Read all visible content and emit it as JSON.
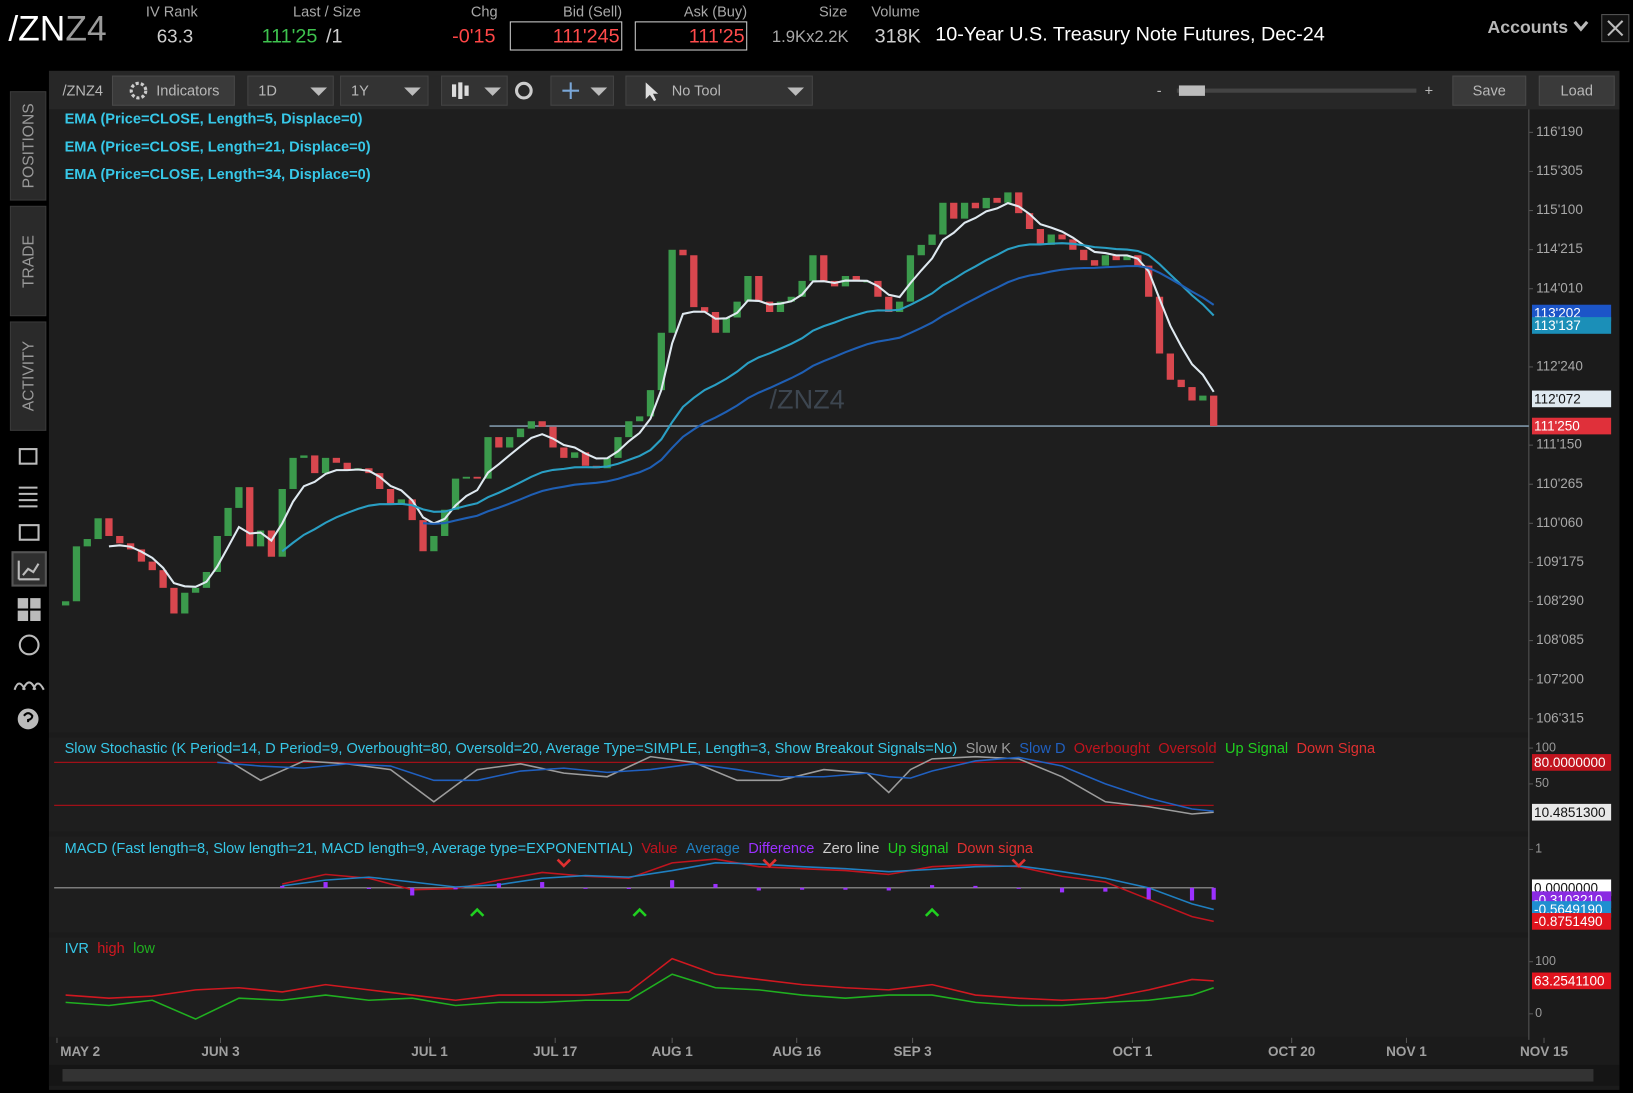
{
  "header": {
    "symbol_main": "/ZN",
    "symbol_suffix": "Z4",
    "fields": [
      {
        "label": "IV Rank",
        "value": "63.3"
      },
      {
        "label": "Last / Size",
        "value": "111'25",
        "extra": "/1"
      },
      {
        "label": "Chg",
        "value": "-0'15"
      },
      {
        "label": "Bid (Sell)",
        "value": "111'245"
      },
      {
        "label": "Ask (Buy)",
        "value": "111'25"
      },
      {
        "label": "Size",
        "value": "1.9Kx2.2K"
      },
      {
        "label": "Volume",
        "value": "318K"
      }
    ],
    "description": "10-Year U.S. Treasury Note Futures, Dec-24",
    "accounts": "Accounts"
  },
  "toolbar": {
    "symbol": "/ZNZ4",
    "indicators": "Indicators",
    "aggregation": "1D",
    "range": "1Y",
    "tool": "No Tool",
    "zoom_out": "-",
    "zoom_in": "+",
    "save": "Save",
    "load": "Load"
  },
  "sidebar": {
    "tabs": [
      "POSITIONS",
      "TRADE",
      "ACTIVITY"
    ]
  },
  "chart_data": [
    {
      "type": "candlestick",
      "watermark": "/ZNZ4",
      "up_color": "#3b9a4c",
      "down_color": "#d8474e",
      "values": [
        108.91,
        109.81,
        109.93,
        110.27,
        109.98,
        109.86,
        109.76,
        109.56,
        109.42,
        109.13,
        108.71,
        109.05,
        109.13,
        109.39,
        109.98,
        110.44,
        110.78,
        109.81,
        110.07,
        109.64,
        110.75,
        111.26,
        111.3,
        111.01,
        111.26,
        111.18,
        111.06,
        111.09,
        111.01,
        110.75,
        110.5,
        110.58,
        110.24,
        109.73,
        109.98,
        110.41,
        110.92,
        110.95,
        110.92,
        111.6,
        111.43,
        111.6,
        111.74,
        111.86,
        111.77,
        111.43,
        111.26,
        111.35,
        111.13,
        111.09,
        111.26,
        111.6,
        111.86,
        111.94,
        112.37,
        113.31,
        114.67,
        114.58,
        113.73,
        113.65,
        113.31,
        113.56,
        113.82,
        114.24,
        113.82,
        113.65,
        113.82,
        113.9,
        114.16,
        114.58,
        114.16,
        114.07,
        114.24,
        114.16,
        114.16,
        113.9,
        113.65,
        113.82,
        114.58,
        114.75,
        114.92,
        115.44,
        115.18,
        115.44,
        115.35,
        115.52,
        115.44,
        115.61,
        115.27,
        115.01,
        114.75,
        114.92,
        114.84,
        114.67,
        114.5,
        114.41,
        114.58,
        114.5,
        114.58,
        114.41,
        113.9,
        112.97,
        112.54,
        112.42,
        112.2,
        112.28,
        111.78125
      ],
      "ylim": [
        106.76,
        116.97
      ],
      "yticks": [
        {
          "value": 116.59375,
          "label": "116'190"
        },
        {
          "value": 115.953125,
          "label": "115'305"
        },
        {
          "value": 115.3125,
          "label": "115'100"
        },
        {
          "value": 114.671875,
          "label": "114'215"
        },
        {
          "value": 114.03125,
          "label": "114'010"
        },
        {
          "value": 112.75,
          "label": "112'240"
        },
        {
          "value": 111.46875,
          "label": "111'150"
        },
        {
          "value": 110.828125,
          "label": "110'265"
        },
        {
          "value": 110.1875,
          "label": "110'060"
        },
        {
          "value": 109.546875,
          "label": "109'175"
        },
        {
          "value": 108.90625,
          "label": "108'290"
        },
        {
          "value": 108.265625,
          "label": "108'085"
        },
        {
          "value": 107.625,
          "label": "107'200"
        },
        {
          "value": 106.984375,
          "label": "106'315"
        }
      ],
      "xlim": [
        -1.54,
        135.1
      ],
      "xticks": [
        {
          "value": -0.8,
          "label": "MAY 2"
        },
        {
          "value": 14.3,
          "label": "JUN 3"
        },
        {
          "value": 33.6,
          "label": "JUL 1"
        },
        {
          "value": 45.2,
          "label": "JUL 17"
        },
        {
          "value": 56,
          "label": "AUG 1"
        },
        {
          "value": 67.5,
          "label": "AUG 16"
        },
        {
          "value": 78.2,
          "label": "SEP 3"
        },
        {
          "value": 98.5,
          "label": "OCT 1"
        },
        {
          "value": 113.2,
          "label": "OCT 20"
        },
        {
          "value": 123.8,
          "label": "NOV 1"
        },
        {
          "value": 136.5,
          "label": "NOV 15"
        }
      ],
      "indicators": [
        {
          "name": "EMA (Price=CLOSE, Length=5, Displace=0)",
          "length": 5,
          "color": "#dfe9f0"
        },
        {
          "name": "EMA (Price=CLOSE, Length=21, Displace=0)",
          "length": 21,
          "color": "#2a9fc4"
        },
        {
          "name": "EMA (Price=CLOSE, Length=34, Displace=0)",
          "length": 34,
          "color": "#1f5fb4"
        }
      ],
      "price_markers": [
        {
          "value": 113.6328,
          "label": "113'202",
          "color": "#1c55c8"
        },
        {
          "value": 113.4297,
          "label": "113'137",
          "color": "#1b8fb8"
        },
        {
          "value": 112.2266,
          "label": "112'072",
          "color": "#dfe9f0"
        },
        {
          "value": 111.78125,
          "label": "111'250",
          "color": "#e0303a"
        }
      ]
    },
    {
      "type": "line",
      "title": "Slow Stochastic (K Period=14, D Period=9, Overbought=80, Oversold=20, Average Type=SIMPLE, Length=3, Show Breakout Signals=No)",
      "x": [
        14,
        18,
        22,
        26,
        30,
        34,
        38,
        42,
        46,
        50,
        54,
        58,
        62,
        66,
        70,
        74,
        76,
        78,
        80,
        84,
        88,
        92,
        96,
        100,
        104,
        106
      ],
      "series": [
        {
          "name": "Slow K",
          "color": "#9c9c9c",
          "values": [
            92,
            55,
            82,
            78,
            70,
            25,
            70,
            78,
            65,
            60,
            88,
            80,
            55,
            55,
            70,
            65,
            38,
            70,
            85,
            88,
            85,
            60,
            25,
            18,
            8,
            10.48513
          ]
        },
        {
          "name": "Slow D",
          "color": "#2060c0",
          "values": [
            80,
            75,
            72,
            78,
            75,
            55,
            55,
            68,
            72,
            66,
            70,
            78,
            70,
            60,
            60,
            65,
            60,
            58,
            68,
            82,
            87,
            75,
            50,
            30,
            15,
            12
          ]
        }
      ],
      "legend_extra": [
        {
          "name": "Overbought",
          "color": "#c0141e"
        },
        {
          "name": "Oversold",
          "color": "#c0141e"
        },
        {
          "name": "Up Signal",
          "color": "#20d020"
        },
        {
          "name": "Down Signa",
          "color": "#e03030"
        }
      ],
      "levels": [
        80,
        20
      ],
      "level_color": "#a01018",
      "ylim": [
        -16.4,
        114.5
      ],
      "yticks": [
        100,
        50
      ],
      "markers": [
        {
          "value": 80,
          "label": "80.0000000",
          "color": "#c0141e"
        },
        {
          "value": 10.48513,
          "label": "10.4851300",
          "color": "#e8e8e8"
        }
      ]
    },
    {
      "type": "macd",
      "title": "MACD (Fast length=8, Slow length=21, MACD length=9, Average type=EXPONENTIAL)",
      "x": [
        20,
        24,
        28,
        32,
        36,
        40,
        44,
        48,
        52,
        56,
        60,
        64,
        68,
        72,
        76,
        80,
        84,
        88,
        92,
        96,
        100,
        104,
        106
      ],
      "series": [
        {
          "name": "Value",
          "color": "#c0141e",
          "values": [
            0.1,
            0.35,
            0.25,
            -0.05,
            -0.02,
            0.2,
            0.4,
            0.3,
            0.25,
            0.65,
            0.75,
            0.55,
            0.5,
            0.45,
            0.35,
            0.55,
            0.6,
            0.55,
            0.3,
            0.15,
            -0.3,
            -0.75,
            -0.875149
          ]
        },
        {
          "name": "Average",
          "color": "#1f7fc0",
          "values": [
            0.05,
            0.2,
            0.28,
            0.15,
            0.02,
            0.08,
            0.25,
            0.32,
            0.28,
            0.45,
            0.65,
            0.62,
            0.55,
            0.5,
            0.42,
            0.48,
            0.55,
            0.57,
            0.42,
            0.25,
            0.0,
            -0.42,
            -0.564919
          ]
        },
        {
          "name": "Difference",
          "color": "#9b30ff",
          "values": [
            0.05,
            0.15,
            -0.03,
            -0.2,
            -0.04,
            0.12,
            0.15,
            -0.02,
            -0.03,
            0.2,
            0.1,
            -0.07,
            -0.05,
            -0.05,
            -0.07,
            0.07,
            0.05,
            -0.02,
            -0.12,
            -0.1,
            -0.3,
            -0.33,
            -0.310321
          ]
        }
      ],
      "legend_extra": [
        {
          "name": "Zero line",
          "color": "#cccccc"
        },
        {
          "name": "Up signal",
          "color": "#20d020"
        },
        {
          "name": "Down signa",
          "color": "#e03030"
        }
      ],
      "up_signals": [
        38,
        53,
        80
      ],
      "down_signals": [
        46,
        65,
        88
      ],
      "ylim": [
        -1.1667,
        1.3333
      ],
      "yticks": [
        1
      ],
      "markers": [
        {
          "value": 0,
          "label": "0.0000000",
          "color": "#ffffff"
        },
        {
          "value": -0.310321,
          "label": "-0.3103210",
          "color": "#8a2be2"
        },
        {
          "value": -0.564919,
          "label": "-0.5649190",
          "color": "#1f8fd0"
        },
        {
          "value": -0.875149,
          "label": "-0.8751490",
          "color": "#e0141e"
        }
      ]
    },
    {
      "type": "line",
      "title": "",
      "x": [
        0,
        4,
        8,
        12,
        16,
        20,
        24,
        28,
        32,
        36,
        40,
        44,
        48,
        52,
        56,
        60,
        64,
        68,
        72,
        76,
        80,
        84,
        88,
        92,
        96,
        100,
        104,
        106
      ],
      "series": [
        {
          "name": "IVR",
          "color": "#37c8e8"
        },
        {
          "name": "high",
          "color": "#d01820",
          "values": [
            36,
            30,
            34,
            46,
            50,
            42,
            56,
            46,
            36,
            26,
            36,
            36,
            36,
            42,
            106,
            76,
            66,
            56,
            50,
            46,
            56,
            36,
            30,
            26,
            30,
            46,
            66,
            63.25411
          ]
        },
        {
          "name": "low",
          "color": "#20b020",
          "values": [
            22,
            16,
            26,
            -10,
            30,
            26,
            36,
            26,
            30,
            16,
            22,
            22,
            26,
            26,
            76,
            50,
            46,
            36,
            30,
            36,
            36,
            22,
            16,
            16,
            22,
            26,
            36,
            50
          ]
        }
      ],
      "ylim": [
        -44,
        146
      ],
      "yticks": [
        100,
        0
      ],
      "markers": [
        {
          "value": 63.25411,
          "label": "63.2541100",
          "color": "#e0141e"
        }
      ]
    }
  ]
}
